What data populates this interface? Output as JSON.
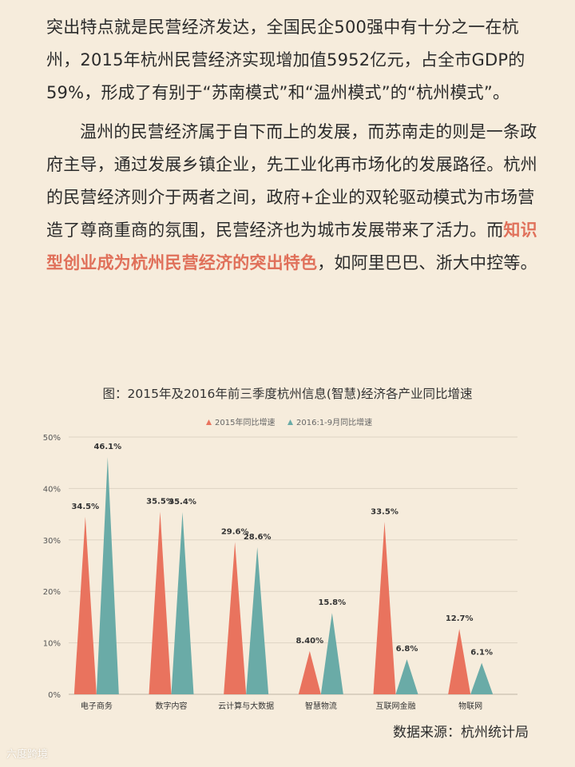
{
  "article": {
    "p1": "突出特点就是民营经济发达，全国民企500强中有十分之一在杭州，2015年杭州民营经济实现增加值5952亿元，占全市GDP的59%，形成了有别于“苏南模式”和“温州模式”的“杭州模式”。",
    "p2_before": "温州的民营经济属于自下而上的发展，而苏南走的则是一条政府主导，通过发展乡镇企业，先工业化再市场化的发展路径。杭州的民营经济则介于两者之间，政府+企业的双轮驱动模式为市场营造了尊商重商的氛围，民营经济也为城市发展带来了活力。而",
    "p2_highlight": "知识型创业成为杭州民营经济的突出特色",
    "p2_after": "，如阿里巴巴、浙大中控等。"
  },
  "chart_caption": "图：2015年及2016年前三季度杭州信息(智慧)经济各产业同比增速",
  "chart_data": {
    "type": "bar",
    "title": "图：2015年及2016年前三季度杭州信息(智慧)经济各产业同比增速",
    "categories": [
      "电子商务",
      "数字内容",
      "云计算与大数据",
      "智慧物流",
      "互联网金融",
      "物联网"
    ],
    "series": [
      {
        "name": "2015年同比增速",
        "color": "#e9735e",
        "values": [
          34.5,
          35.5,
          29.6,
          8.4,
          33.5,
          12.7
        ],
        "labels": [
          "34.5%",
          "35.5%",
          "29.6%",
          "8.40%",
          "33.5%",
          "12.7%"
        ]
      },
      {
        "name": "2016:1-9月同比增速",
        "color": "#6aaba7",
        "values": [
          46.1,
          35.4,
          28.6,
          15.8,
          6.8,
          6.1
        ],
        "labels": [
          "46.1%",
          "35.4%",
          "28.6%",
          "15.8%",
          "6.8%",
          "6.1%"
        ]
      }
    ],
    "y_ticks": [
      "0%",
      "10%",
      "20%",
      "30%",
      "40%",
      "50%"
    ],
    "ylim": [
      0,
      50
    ],
    "grid": true,
    "legend": "top-center",
    "xlabel": "",
    "ylabel": ""
  },
  "source": "数据来源：杭州统计局",
  "watermark": "六度跨境"
}
